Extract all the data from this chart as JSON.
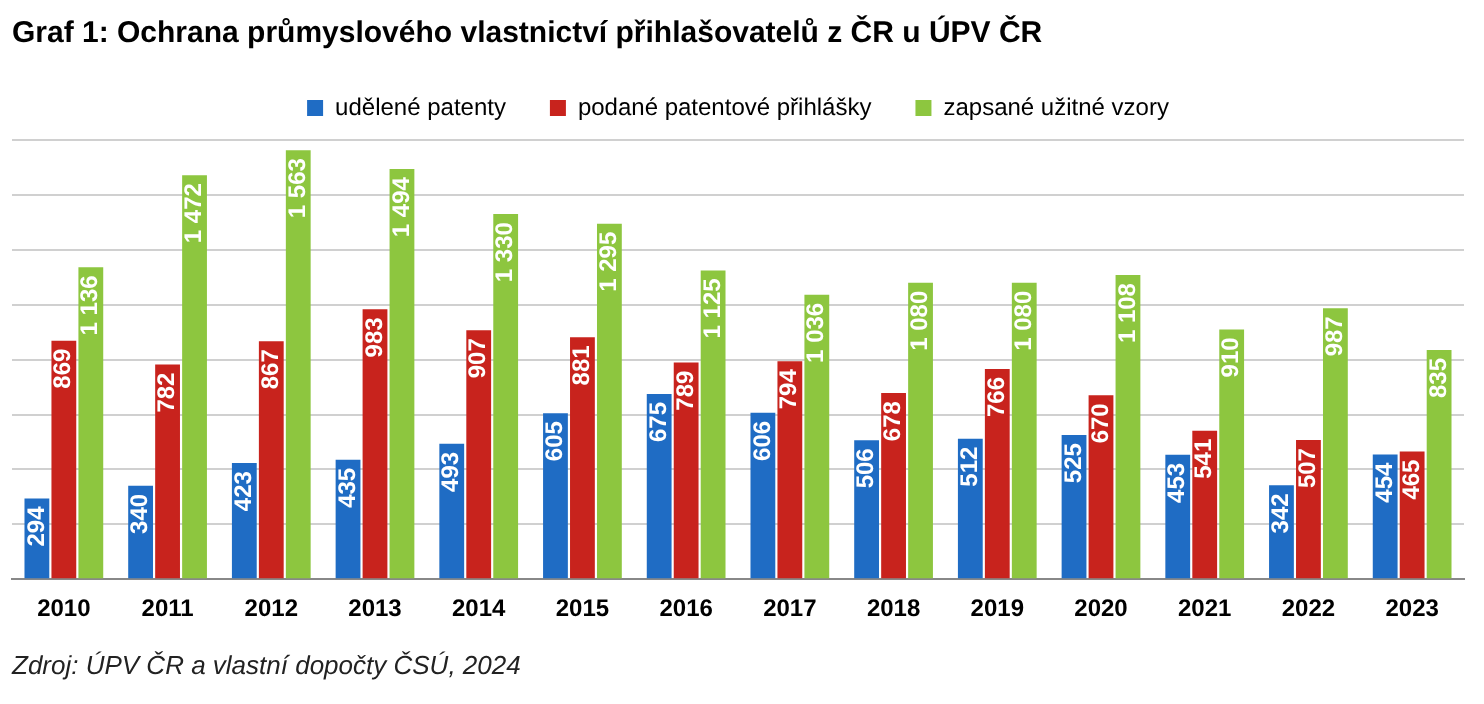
{
  "chart_data": {
    "type": "bar",
    "title": "Graf 1: Ochrana průmyslového vlastnictví přihlašovatelů z ČR u ÚPV ČR",
    "categories": [
      "2010",
      "2011",
      "2012",
      "2013",
      "2014",
      "2015",
      "2016",
      "2017",
      "2018",
      "2019",
      "2020",
      "2021",
      "2022",
      "2023"
    ],
    "series": [
      {
        "name": "udělené patenty",
        "color": "#1f6cc4",
        "values": [
          294,
          340,
          423,
          435,
          493,
          605,
          675,
          606,
          506,
          512,
          525,
          453,
          342,
          454
        ],
        "value_labels": [
          "294",
          "340",
          "423",
          "435",
          "493",
          "605",
          "675",
          "606",
          "506",
          "512",
          "525",
          "453",
          "342",
          "454"
        ]
      },
      {
        "name": "podané patentové přihlášky",
        "color": "#c8231d",
        "values": [
          869,
          782,
          867,
          983,
          907,
          881,
          789,
          794,
          678,
          766,
          670,
          541,
          507,
          465
        ],
        "value_labels": [
          "869",
          "782",
          "867",
          "983",
          "907",
          "881",
          "789",
          "794",
          "678",
          "766",
          "670",
          "541",
          "507",
          "465"
        ]
      },
      {
        "name": "zapsané užitné vzory",
        "color": "#8dc63f",
        "values": [
          1136,
          1472,
          1563,
          1494,
          1330,
          1295,
          1125,
          1036,
          1080,
          1080,
          1108,
          910,
          987,
          835
        ],
        "value_labels": [
          "1 136",
          "1 472",
          "1 563",
          "1 494",
          "1 330",
          "1 295",
          "1 125",
          "1 036",
          "1 080",
          "1 080",
          "1 108",
          "910",
          "987",
          "835"
        ]
      }
    ],
    "tick_labels": "x",
    "grid": "y",
    "legend": "top",
    "annotations": [
      "Zdroj: ÚPV ČR a vlastní dopočty ČSÚ, 2024"
    ]
  }
}
